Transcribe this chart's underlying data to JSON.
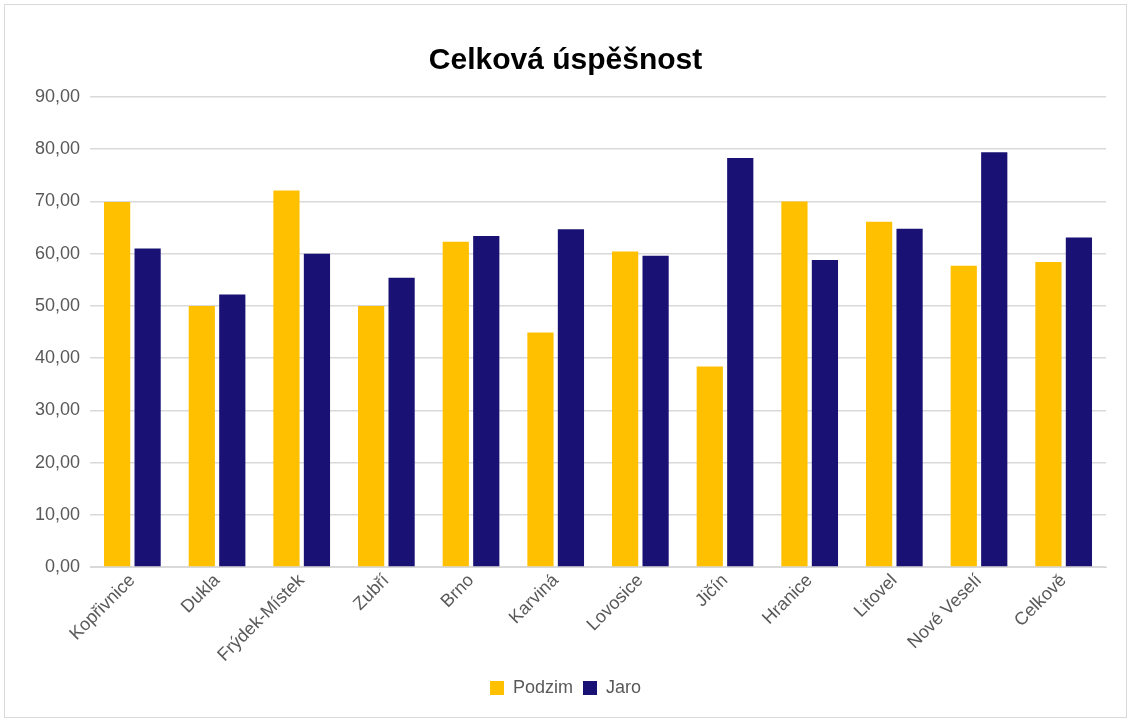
{
  "chart_data": {
    "type": "bar",
    "title": "Celková úspěšnost",
    "categories": [
      "Kopřivnice",
      "Dukla",
      "Frýdek-Místek",
      "Zubří",
      "Brno",
      "Karviná",
      "Lovosice",
      "Jičín",
      "Hranice",
      "Litovel",
      "Nové Veselí",
      "Celkově"
    ],
    "series": [
      {
        "name": "Podzim",
        "color": "#ffc000",
        "values": [
          69.9,
          50,
          72.1,
          50,
          62.3,
          44.9,
          60.4,
          38.4,
          70,
          66.1,
          57.7,
          58.4
        ]
      },
      {
        "name": "Jaro",
        "color": "#1a1175",
        "values": [
          61,
          52.2,
          60,
          55.4,
          63.4,
          64.7,
          59.6,
          78.3,
          58.8,
          64.8,
          79.4,
          63.1
        ]
      }
    ],
    "ylim": [
      0,
      90
    ],
    "yticks": [
      {
        "value": 0,
        "label": "0,00"
      },
      {
        "value": 10,
        "label": "10,00"
      },
      {
        "value": 20,
        "label": "20,00"
      },
      {
        "value": 30,
        "label": "30,00"
      },
      {
        "value": 40,
        "label": "40,00"
      },
      {
        "value": 50,
        "label": "50,00"
      },
      {
        "value": 60,
        "label": "60,00"
      },
      {
        "value": 70,
        "label": "70,00"
      },
      {
        "value": 80,
        "label": "80,00"
      },
      {
        "value": 90,
        "label": "90,00"
      }
    ],
    "grid": "y",
    "legend": "bottom"
  }
}
